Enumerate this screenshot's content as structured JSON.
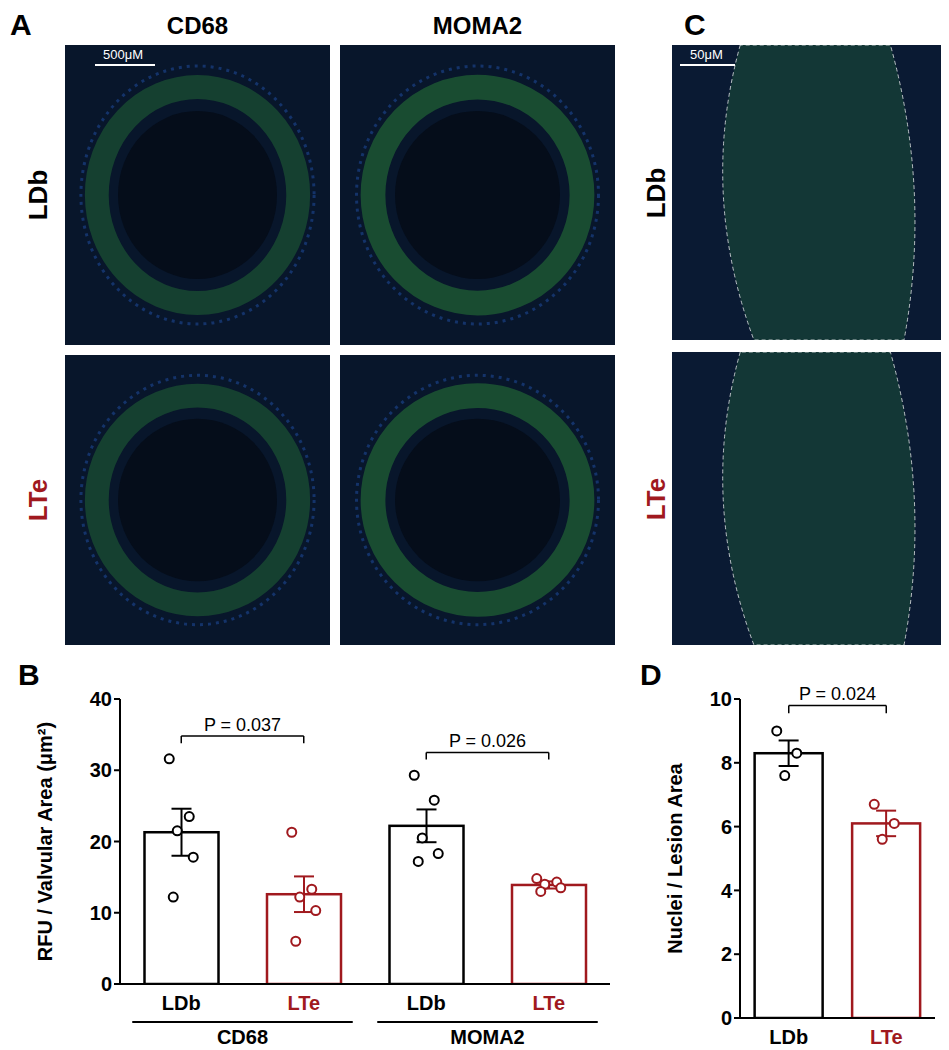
{
  "panels": {
    "A": {
      "label": "A",
      "columns": [
        "CD68",
        "MOMA2"
      ],
      "rows": [
        "LDb",
        "LTe"
      ],
      "row_colors": [
        "#000000",
        "#a0191e"
      ],
      "scale_bar": "500μM"
    },
    "C": {
      "label": "C",
      "rows": [
        "LDb",
        "LTe"
      ],
      "row_colors": [
        "#000000",
        "#a0191e"
      ],
      "scale_bar": "50μM"
    }
  },
  "chart_data": [
    {
      "type": "bar",
      "panel_label": "B",
      "categories": [
        "LDb",
        "LTe",
        "LDb",
        "LTe"
      ],
      "groups": [
        "CD68",
        "CD68",
        "MOMA2",
        "MOMA2"
      ],
      "colors": [
        "#000000",
        "#a0191e",
        "#000000",
        "#a0191e"
      ],
      "values": [
        21.3,
        12.6,
        22.2,
        13.9
      ],
      "errors": [
        3.3,
        2.5,
        2.3,
        0.5
      ],
      "points": [
        [
          31.6,
          23.5,
          21.5,
          17.8,
          12.2
        ],
        [
          21.3,
          13.3,
          12.2,
          10.3,
          6.0
        ],
        [
          29.3,
          25.8,
          20.5,
          18.3,
          17.2
        ],
        [
          14.8,
          14.3,
          14.0,
          13.5,
          13.0
        ]
      ],
      "y_label": "RFU / Valvular Area (μm²)",
      "ylim": [
        0,
        40
      ],
      "yticks": [
        0,
        10,
        20,
        30,
        40
      ],
      "annotations": [
        {
          "text": "P = 0.037",
          "between": [
            0,
            1
          ]
        },
        {
          "text": "P = 0.026",
          "between": [
            2,
            3
          ]
        }
      ]
    },
    {
      "type": "bar",
      "panel_label": "D",
      "categories": [
        "LDb",
        "LTe"
      ],
      "colors": [
        "#000000",
        "#a0191e"
      ],
      "values": [
        8.3,
        6.1
      ],
      "errors": [
        0.4,
        0.4
      ],
      "points": [
        [
          9.0,
          8.3,
          7.6
        ],
        [
          6.7,
          6.1,
          5.6
        ]
      ],
      "y_label": "Nuclei / Lesion Area",
      "ylim": [
        0,
        10
      ],
      "yticks": [
        0,
        2,
        4,
        6,
        8,
        10
      ],
      "annotations": [
        {
          "text": "P = 0.024",
          "between": [
            0,
            1
          ]
        }
      ]
    }
  ]
}
